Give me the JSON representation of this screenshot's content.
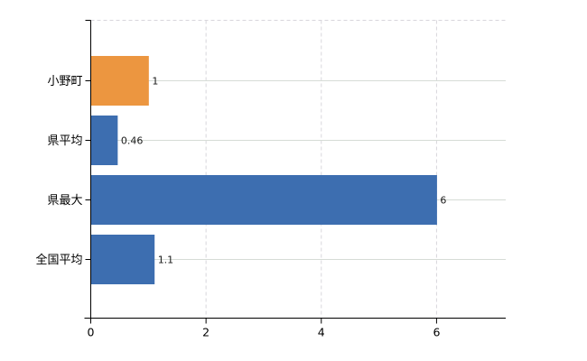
{
  "chart_data": {
    "type": "bar",
    "orientation": "horizontal",
    "title": "",
    "xlabel": "",
    "ylabel": "",
    "categories": [
      "小野町",
      "県平均",
      "県最大",
      "全国平均"
    ],
    "values": [
      1,
      0.46,
      6,
      1.1
    ],
    "value_labels": [
      "1",
      "0.46",
      "6",
      "1.1"
    ],
    "bar_colors": [
      "#ec9640",
      "#3d6eb0",
      "#3d6eb0",
      "#3d6eb0"
    ],
    "highlight_color": "#ec9640",
    "base_color": "#3d6eb0",
    "x_ticks": [
      0,
      2,
      4,
      6
    ],
    "x_tick_labels": [
      "0",
      "2",
      "4",
      "6"
    ],
    "xlim": [
      0,
      7.2
    ],
    "grid": "on",
    "legend": "none",
    "colors": {
      "axis": "#000000",
      "gridline_horizontal": "#d6dcd6",
      "gridline_vertical": "#d8d6dc",
      "text": "#1a1a1a",
      "background": "#ffffff"
    }
  }
}
